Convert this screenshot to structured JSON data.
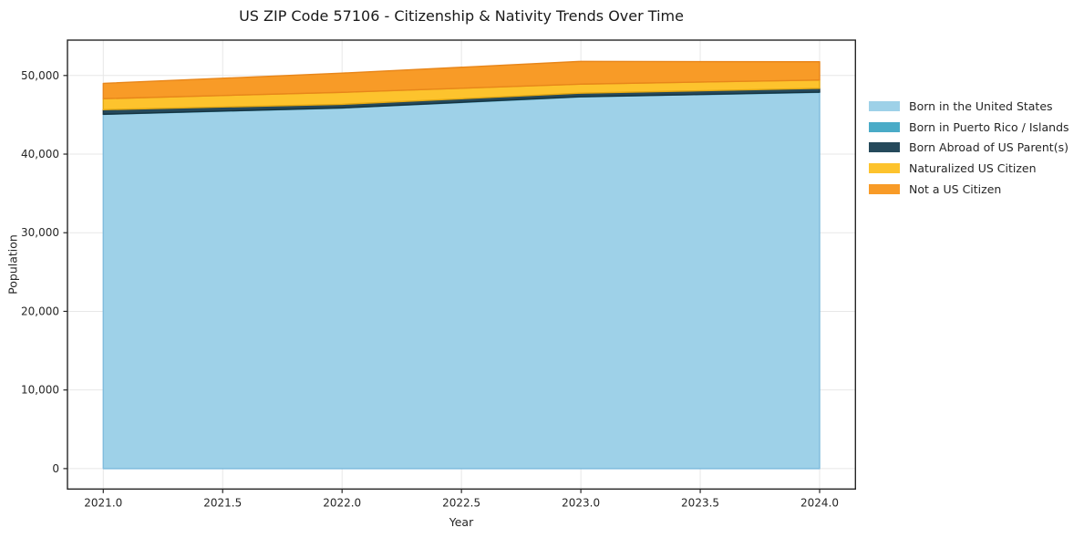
{
  "figure": {
    "title": "US ZIP Code 57106 - Citizenship & Nativity Trends Over Time"
  },
  "chart_data": {
    "type": "area",
    "stacked": true,
    "title": "US ZIP Code 57106 - Citizenship & Nativity Trends Over Time",
    "xlabel": "Year",
    "ylabel": "Population",
    "x": [
      2021,
      2022,
      2023,
      2024
    ],
    "series": [
      {
        "name": "Born in the United States",
        "color": "#9ED1E8",
        "edge": "#7FBCDD",
        "values": [
          45050,
          45860,
          47280,
          47860
        ]
      },
      {
        "name": "Born in Puerto Rico / Islands",
        "color": "#4AABC7",
        "edge": "#3391AF",
        "values": [
          25,
          25,
          25,
          25
        ]
      },
      {
        "name": "Born Abroad of US Parent(s)",
        "color": "#25495B",
        "edge": "#17333F",
        "values": [
          575,
          450,
          450,
          480
        ]
      },
      {
        "name": "Naturalized US Citizen",
        "color": "#FDC32D",
        "edge": "#E2A713",
        "values": [
          1400,
          1525,
          1150,
          1060
        ]
      },
      {
        "name": "Not a US Citizen",
        "color": "#F89B27",
        "edge": "#E8861A",
        "values": [
          1950,
          2440,
          2890,
          2320
        ]
      }
    ],
    "x_ticks": [
      2021.0,
      2021.5,
      2022.0,
      2022.5,
      2023.0,
      2023.5,
      2024.0
    ],
    "x_tick_labels": [
      "2021.0",
      "2021.5",
      "2022.0",
      "2022.5",
      "2023.0",
      "2023.5",
      "2024.0"
    ],
    "y_ticks": [
      0,
      10000,
      20000,
      30000,
      40000,
      50000
    ],
    "y_tick_labels": [
      "0",
      "10,000",
      "20,000",
      "30,000",
      "40,000",
      "50,000"
    ],
    "xlim": [
      2020.85,
      2024.15
    ],
    "ylim": [
      -2600,
      54500
    ],
    "grid": true,
    "grid_color": "#e7e7e7",
    "axis_color": "#262626",
    "text_color": "#262626",
    "legend_position": "right"
  }
}
